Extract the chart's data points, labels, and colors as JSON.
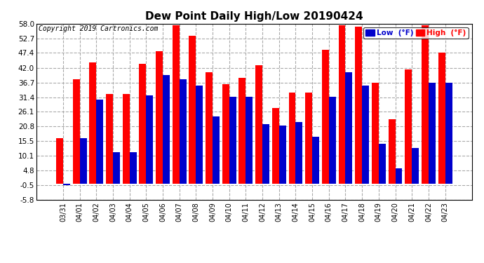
{
  "title": "Dew Point Daily High/Low 20190424",
  "copyright": "Copyright 2019 Cartronics.com",
  "dates": [
    "03/31",
    "04/01",
    "04/02",
    "04/03",
    "04/04",
    "04/05",
    "04/06",
    "04/07",
    "04/08",
    "04/09",
    "04/10",
    "04/11",
    "04/12",
    "04/13",
    "04/14",
    "04/15",
    "04/16",
    "04/17",
    "04/18",
    "04/19",
    "04/20",
    "04/21",
    "04/22",
    "04/23"
  ],
  "high": [
    16.5,
    38.0,
    44.0,
    32.5,
    32.5,
    43.5,
    48.0,
    57.5,
    53.5,
    40.5,
    36.0,
    38.5,
    43.0,
    27.5,
    33.0,
    33.0,
    48.5,
    57.5,
    57.0,
    36.5,
    23.5,
    41.5,
    57.5,
    47.5
  ],
  "low": [
    -0.5,
    16.5,
    30.5,
    11.5,
    11.5,
    32.0,
    39.5,
    38.0,
    35.5,
    24.5,
    31.5,
    31.5,
    21.5,
    21.0,
    22.5,
    17.0,
    31.5,
    40.5,
    35.5,
    14.5,
    5.5,
    13.0,
    36.5,
    36.5
  ],
  "ylim": [
    -5.8,
    58.0
  ],
  "yticks": [
    -5.8,
    -0.5,
    4.8,
    10.1,
    15.5,
    20.8,
    26.1,
    31.4,
    36.7,
    42.0,
    47.4,
    52.7,
    58.0
  ],
  "bar_width": 0.42,
  "high_color": "#ff0000",
  "low_color": "#0000cc",
  "bg_color": "#ffffff",
  "plot_bg_color": "#ffffff",
  "grid_color": "#aaaaaa",
  "title_fontsize": 11,
  "legend_low_label": "Low  (°F)",
  "legend_high_label": "High  (°F)"
}
